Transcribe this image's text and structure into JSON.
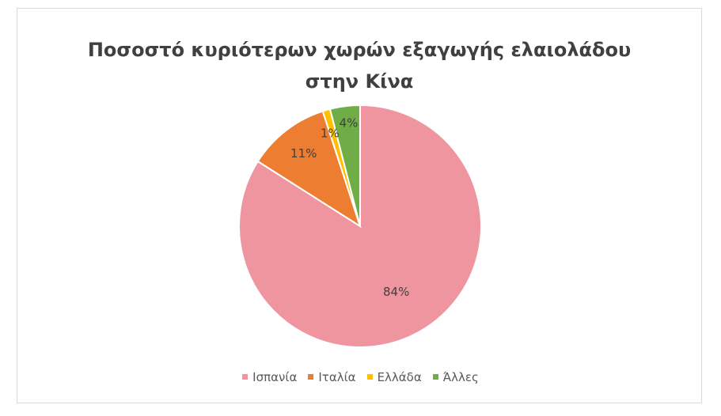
{
  "chart_data": {
    "type": "pie",
    "title_lines": [
      "Ποσοστό κυριότερων χωρών εξαγωγής ελαιολάδου",
      "στην Κίνα"
    ],
    "slices": [
      {
        "label": "Ισπανία",
        "value": 84,
        "data_label": "84%",
        "color": "#EE959F"
      },
      {
        "label": "Ιταλία",
        "value": 11,
        "data_label": "11%",
        "color": "#ED7D31"
      },
      {
        "label": "Ελλάδα",
        "value": 1,
        "data_label": "1%",
        "color": "#FFC000"
      },
      {
        "label": "Άλλες",
        "value": 4,
        "data_label": "4%",
        "color": "#70AD47"
      }
    ],
    "legend_position": "bottom",
    "start": "top, clockwise"
  }
}
